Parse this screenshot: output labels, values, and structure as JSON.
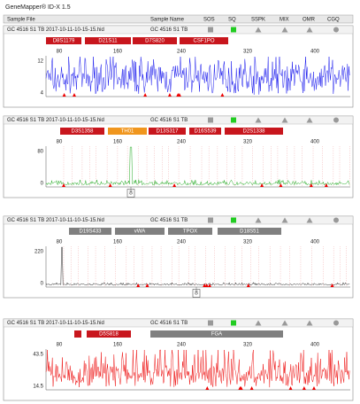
{
  "app_title": "GeneMapper® ID-X 1.5",
  "columns": [
    "Sample File",
    "Sample Name",
    "SOS",
    "SQ",
    "SSPK",
    "MIX",
    "OMR",
    "CGQ"
  ],
  "panels": [
    {
      "sample_file": "GC 4516 S1 TB  2017-10-11-10-15-15.hid",
      "sample_name": "GC 4516 S1 TB",
      "trace_color": "#1a1aee",
      "markers": [
        {
          "label": "D8S1179",
          "color": "#c8161d"
        },
        {
          "label": "D21S11",
          "color": "#c8161d"
        },
        {
          "label": "D7S820",
          "color": "#c8161d"
        },
        {
          "label": "CSF1PO",
          "color": "#c8161d"
        }
      ],
      "x_ticks": [
        "80",
        "160",
        "240",
        "320",
        "400"
      ],
      "y_ticks": [
        "12",
        "4"
      ]
    },
    {
      "sample_file": "GC 4516 S1 TB  2017-10-11-10-15-15.hid",
      "sample_name": "GC 4516 S1 TB",
      "trace_color": "#22aa22",
      "markers": [
        {
          "label": "D3S1358",
          "color": "#c8161d"
        },
        {
          "label": "TH01",
          "color": "#f0961e"
        },
        {
          "label": "D13S317",
          "color": "#c8161d"
        },
        {
          "label": "D16S539",
          "color": "#c8161d"
        },
        {
          "label": "D2S1338",
          "color": "#c8161d"
        }
      ],
      "x_ticks": [
        "80",
        "160",
        "240",
        "320",
        "400"
      ],
      "y_ticks": [
        "80",
        "0"
      ],
      "annotation": "8"
    },
    {
      "sample_file": "GC 4516 S1 TB  2017-10-11-10-15-15.hid",
      "sample_name": "GC 4516 S1 TB",
      "trace_color": "#222222",
      "markers": [
        {
          "label": "D19S433",
          "color": "#808080"
        },
        {
          "label": "vWA",
          "color": "#808080"
        },
        {
          "label": "TPOX",
          "color": "#808080"
        },
        {
          "label": "D18S51",
          "color": "#808080"
        }
      ],
      "x_ticks": [
        "80",
        "160",
        "240",
        "320",
        "400"
      ],
      "y_ticks": [
        "220",
        "0"
      ],
      "annotation": "8"
    },
    {
      "sample_file": "GC 4516 S1 TB  2017-10-11-10-15-15.hid",
      "sample_name": "GC 4516 S1 TB",
      "trace_color": "#ee1010",
      "markers": [
        {
          "label": "D5S818",
          "color": "#c8161d"
        },
        {
          "label": "FGA",
          "color": "#808080"
        }
      ],
      "x_ticks": [
        "80",
        "160",
        "240",
        "320",
        "400"
      ],
      "y_ticks": [
        "43.5",
        "14.5"
      ]
    }
  ]
}
